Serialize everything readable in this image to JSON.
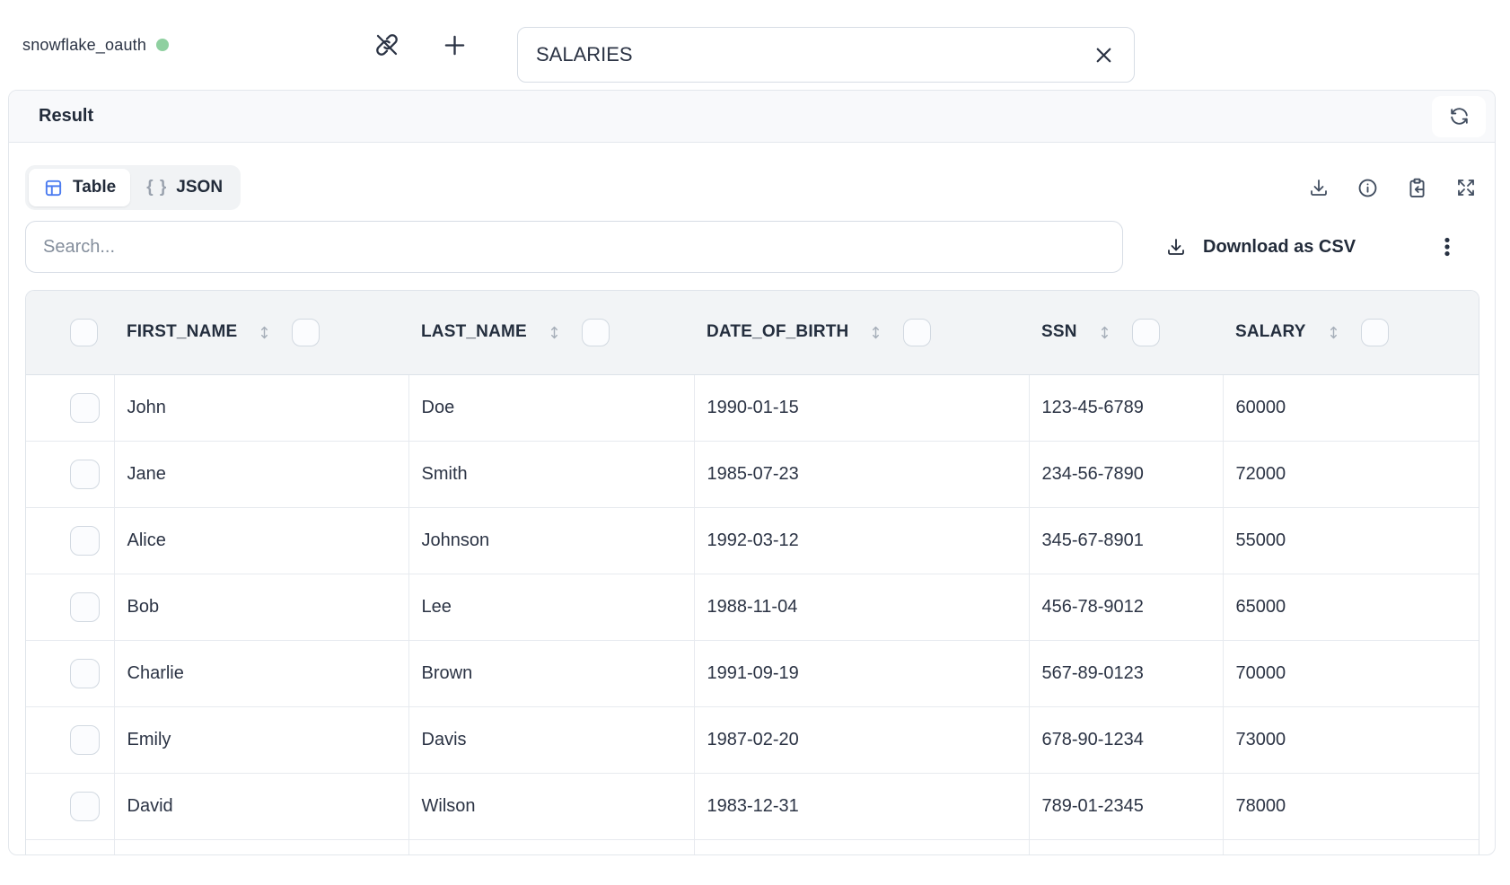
{
  "topbar": {
    "connection_name": "snowflake_oauth",
    "connection_status": "connected",
    "status_color": "#8fd0a0",
    "table_name_value": "SALARIES"
  },
  "result": {
    "title": "Result",
    "tabs": [
      {
        "label": "Table",
        "icon": "table-icon",
        "active": true
      },
      {
        "label": "JSON",
        "icon": "braces-icon",
        "active": false
      }
    ],
    "braces_glyph": "{ }",
    "search_placeholder": "Search...",
    "download_csv_label": "Download as CSV"
  },
  "table": {
    "columns": [
      "FIRST_NAME",
      "LAST_NAME",
      "DATE_OF_BIRTH",
      "SSN",
      "SALARY"
    ],
    "rows": [
      [
        "John",
        "Doe",
        "1990-01-15",
        "123-45-6789",
        "60000"
      ],
      [
        "Jane",
        "Smith",
        "1985-07-23",
        "234-56-7890",
        "72000"
      ],
      [
        "Alice",
        "Johnson",
        "1992-03-12",
        "345-67-8901",
        "55000"
      ],
      [
        "Bob",
        "Lee",
        "1988-11-04",
        "456-78-9012",
        "65000"
      ],
      [
        "Charlie",
        "Brown",
        "1991-09-19",
        "567-89-0123",
        "70000"
      ],
      [
        "Emily",
        "Davis",
        "1987-02-20",
        "678-90-1234",
        "73000"
      ],
      [
        "David",
        "Wilson",
        "1983-12-31",
        "789-01-2345",
        "78000"
      ]
    ]
  },
  "icons": {
    "topbar": [
      "link-off-icon",
      "plus-icon",
      "clear-icon"
    ],
    "result_header": [
      "refresh-icon"
    ],
    "toolbar": [
      "table-icon",
      "braces-icon",
      "download-icon",
      "info-icon",
      "paste-icon",
      "maximize-icon"
    ],
    "search_row": [
      "download-icon",
      "kebab-menu-icon"
    ],
    "table": [
      "sort-icon",
      "checkbox"
    ]
  },
  "colors": {
    "accent_blue": "#4c7cf0",
    "status_green": "#8fd0a0",
    "text_dark": "#273142",
    "border": "#dfe4ea",
    "header_bg": "#f2f4f6",
    "panel_header_bg": "#f8f9fb"
  }
}
